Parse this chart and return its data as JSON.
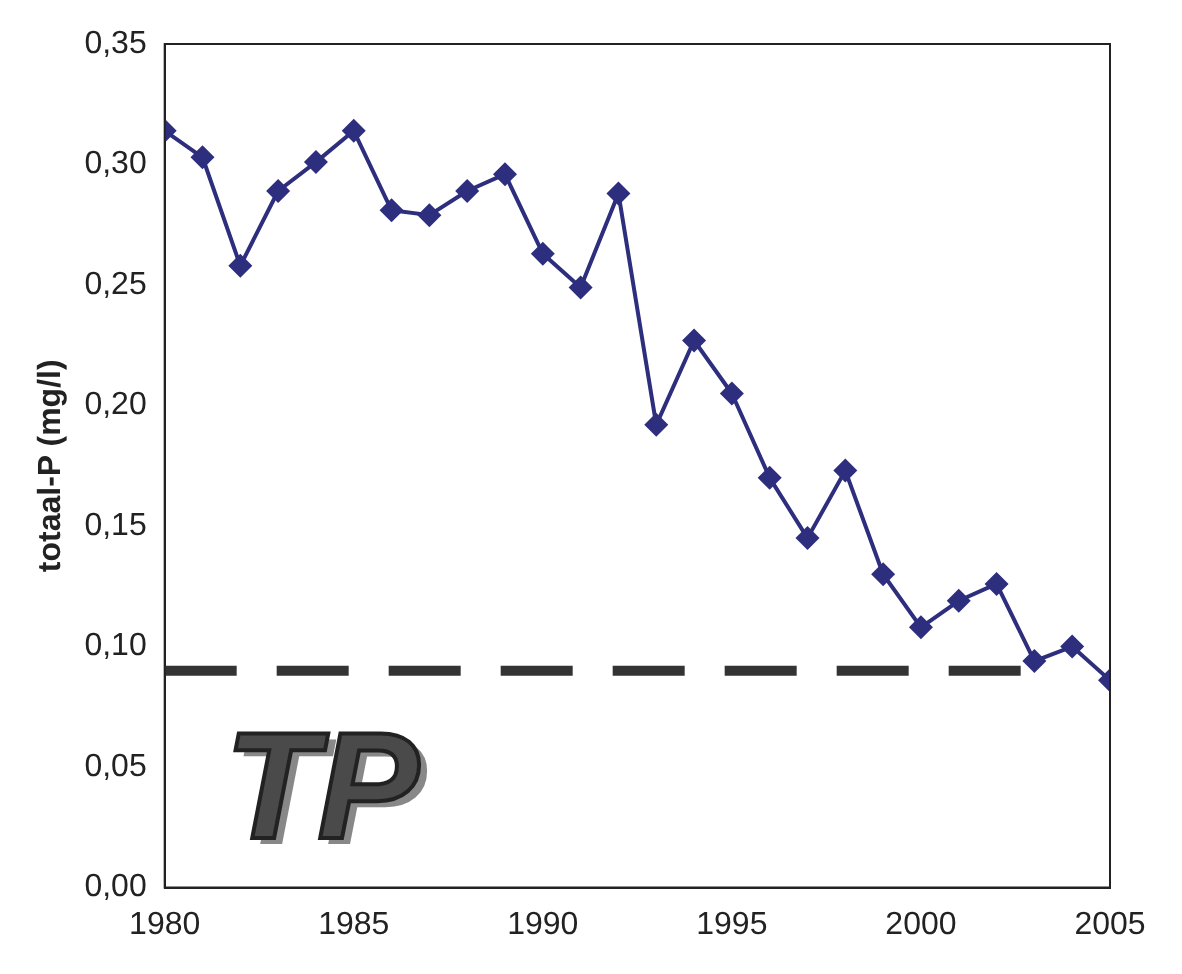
{
  "chart_data": {
    "type": "line",
    "ylabel": "totaal-P (mg/l)",
    "x": [
      1980,
      1981,
      1982,
      1983,
      1984,
      1985,
      1986,
      1987,
      1988,
      1989,
      1990,
      1991,
      1992,
      1993,
      1994,
      1995,
      1996,
      1997,
      1998,
      1999,
      2000,
      2001,
      2002,
      2003,
      2004,
      2005
    ],
    "series": [
      {
        "color": "#2e2e7e",
        "values": [
          0.314,
          0.303,
          0.258,
          0.289,
          0.301,
          0.314,
          0.281,
          0.279,
          0.289,
          0.296,
          0.263,
          0.249,
          0.288,
          0.192,
          0.227,
          0.205,
          0.17,
          0.145,
          0.173,
          0.13,
          0.108,
          0.119,
          0.126,
          0.094,
          0.1,
          0.086
        ]
      }
    ],
    "xlim": [
      1980,
      2005
    ],
    "xticks": [
      1980,
      1985,
      1990,
      1995,
      2000,
      2005
    ],
    "ylim": [
      0,
      0.35
    ],
    "yticks": [
      {
        "value": 0,
        "label": "0,00"
      },
      {
        "value": 0.05,
        "label": "0,05"
      },
      {
        "value": 0.1,
        "label": "0,10"
      },
      {
        "value": 0.15,
        "label": "0,15"
      },
      {
        "value": 0.2,
        "label": "0,20"
      },
      {
        "value": 0.25,
        "label": "0,25"
      },
      {
        "value": 0.3,
        "label": "0,30"
      },
      {
        "value": 0.35,
        "label": "0,35"
      }
    ],
    "ref_lines": [
      {
        "axis": "y",
        "value": 0.09,
        "color": "#333333",
        "line_style": "dashed"
      }
    ],
    "annotations": [
      "TP"
    ],
    "grid": false,
    "legend": false,
    "marker": "diamond",
    "line_style": "solid"
  }
}
